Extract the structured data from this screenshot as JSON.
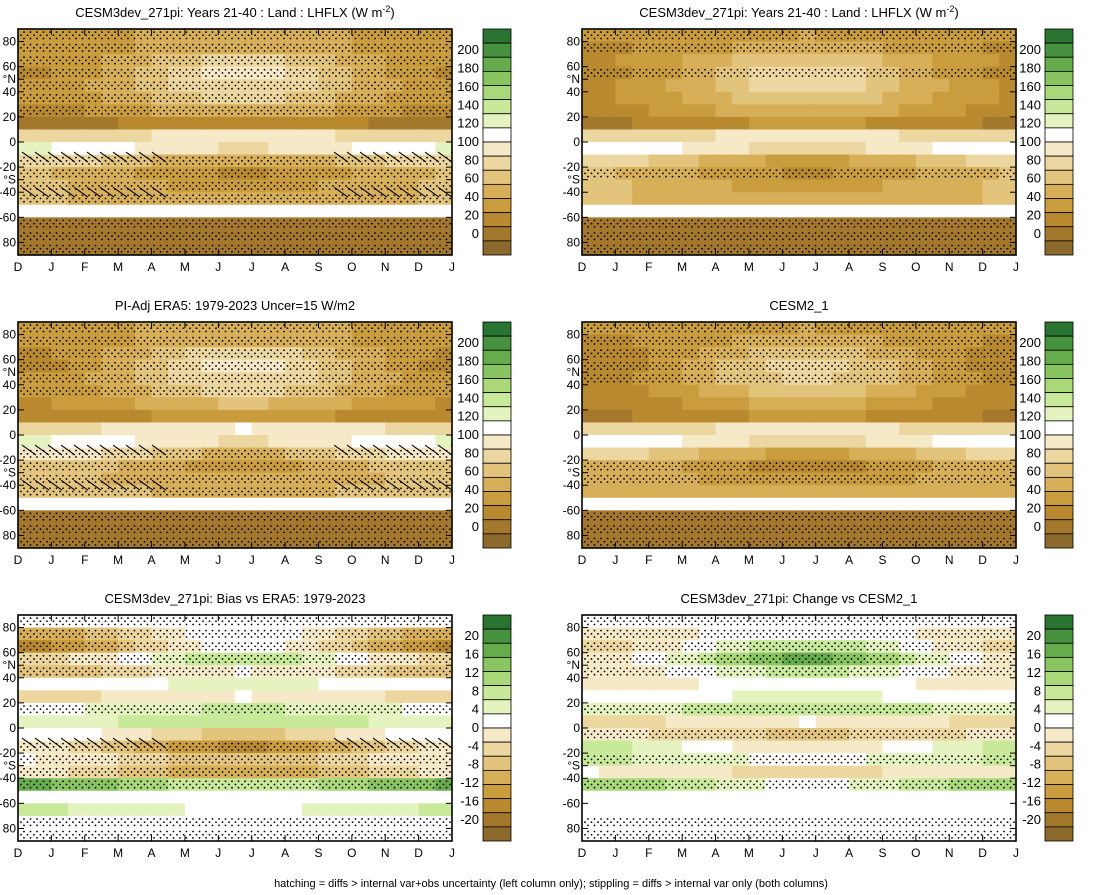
{
  "figure": {
    "footer": "hatching = diffs > internal var+obs uncertainty (left column only); stippling = diffs > internal var only (both columns)"
  },
  "colors": {
    "abs_scale": [
      "#8c6a2e",
      "#a4782c",
      "#b8892f",
      "#c99c3e",
      "#d6af58",
      "#e2c47c",
      "#ecd7a0",
      "#f5e9c8",
      "#ffffff",
      "#e4f3c0",
      "#c8e89a",
      "#a8d878",
      "#88c460",
      "#66ac4c",
      "#46923e",
      "#2a7432"
    ],
    "diff_scale": [
      "#8c6a2e",
      "#a4782c",
      "#b8892f",
      "#c99c3e",
      "#d6af58",
      "#e2c47c",
      "#ecd7a0",
      "#f5e9c8",
      "#ffffff",
      "#e4f3c0",
      "#c8e89a",
      "#a8d878",
      "#88c460",
      "#66ac4c",
      "#46923e",
      "#2a7432"
    ]
  },
  "chart_data": [
    {
      "type": "heatmap",
      "title": "CESM3dev_271pi: Years 21-40 : Land : LHFLX (W m",
      "title_sup": "-2",
      "title_end": ")",
      "x_ticks": [
        "D",
        "J",
        "F",
        "M",
        "A",
        "M",
        "J",
        "J",
        "A",
        "S",
        "O",
        "N",
        "D",
        "J"
      ],
      "y_ticks": [
        "80",
        "60",
        "°N",
        "40",
        "20",
        "0",
        "-20",
        "°S",
        "-40",
        "-60",
        "80"
      ],
      "ylim": [
        -90,
        90
      ],
      "colorbar_labels": [
        "200",
        "180",
        "160",
        "140",
        "120",
        "100",
        "80",
        "60",
        "40",
        "20",
        "0"
      ],
      "colorbar_range": [
        -10,
        210
      ],
      "latitudes": [
        85,
        75,
        65,
        55,
        45,
        35,
        25,
        15,
        5,
        -5,
        -15,
        -25,
        -35,
        -45,
        -55,
        -65,
        -75,
        -85
      ],
      "seasonal_profile": [
        45,
        45,
        55,
        60,
        60,
        55,
        40,
        20,
        85,
        100,
        65,
        45,
        50,
        55,
        100,
        10,
        10,
        10
      ],
      "seasonal_amp": [
        5,
        10,
        20,
        30,
        25,
        20,
        15,
        10,
        10,
        15,
        20,
        15,
        10,
        5,
        0,
        0,
        0,
        0
      ],
      "stipple_rows": [
        85,
        75,
        65,
        55,
        45,
        35,
        25,
        -15,
        -25,
        -35,
        -45,
        -65,
        -75,
        -85
      ],
      "hatch_rows": [
        -12,
        -40
      ],
      "region_note": "Land"
    },
    {
      "type": "heatmap",
      "title": "CESM3dev_271pi: Years 21-40 : Land : LHFLX (W m",
      "title_sup": "-2",
      "title_end": ")",
      "x_ticks": [
        "D",
        "J",
        "F",
        "M",
        "A",
        "M",
        "J",
        "J",
        "A",
        "S",
        "O",
        "N",
        "D",
        "J"
      ],
      "y_ticks": [
        "80",
        "60",
        "°N",
        "40",
        "20",
        "0",
        "-20",
        "°S",
        "-40",
        "-60",
        "80"
      ],
      "ylim": [
        -90,
        90
      ],
      "colorbar_labels": [
        "200",
        "180",
        "160",
        "140",
        "120",
        "100",
        "80",
        "60",
        "40",
        "20",
        "0"
      ],
      "colorbar_range": [
        -10,
        210
      ],
      "latitudes": [
        85,
        75,
        65,
        55,
        45,
        35,
        25,
        15,
        5,
        -5,
        -15,
        -25,
        -35,
        -45,
        -55,
        -65,
        -75,
        -85
      ],
      "seasonal_profile": [
        40,
        40,
        50,
        55,
        55,
        50,
        40,
        25,
        85,
        95,
        60,
        45,
        50,
        55,
        100,
        10,
        10,
        10
      ],
      "seasonal_amp": [
        5,
        10,
        20,
        30,
        25,
        20,
        15,
        10,
        10,
        15,
        20,
        15,
        10,
        5,
        0,
        0,
        0,
        0
      ],
      "stipple_rows": [
        85,
        75,
        55,
        -25,
        -65,
        -75,
        -85
      ],
      "hatch_rows": []
    },
    {
      "type": "heatmap",
      "title": "PI-Adj ERA5: 1979-2023 Uncer=15 W/m2",
      "x_ticks": [
        "D",
        "J",
        "F",
        "M",
        "A",
        "M",
        "J",
        "J",
        "A",
        "S",
        "O",
        "N",
        "D",
        "J"
      ],
      "y_ticks": [
        "80",
        "60",
        "°N",
        "40",
        "20",
        "0",
        "-20",
        "°S",
        "-40",
        "-60",
        "80"
      ],
      "ylim": [
        -90,
        90
      ],
      "colorbar_labels": [
        "200",
        "180",
        "160",
        "140",
        "120",
        "100",
        "80",
        "60",
        "40",
        "20",
        "0"
      ],
      "colorbar_range": [
        -10,
        210
      ],
      "latitudes": [
        85,
        75,
        65,
        55,
        45,
        35,
        25,
        15,
        5,
        -5,
        -15,
        -25,
        -35,
        -45,
        -55,
        -65,
        -75,
        -85
      ],
      "seasonal_profile": [
        45,
        45,
        55,
        60,
        60,
        55,
        45,
        30,
        90,
        100,
        75,
        55,
        55,
        60,
        100,
        10,
        10,
        10
      ],
      "seasonal_amp": [
        5,
        10,
        25,
        35,
        25,
        20,
        15,
        10,
        10,
        15,
        20,
        15,
        10,
        5,
        0,
        0,
        0,
        0
      ],
      "stipple_rows": [
        85,
        75,
        65,
        55,
        45,
        35,
        -15,
        -25,
        -35,
        -45,
        -65,
        -75,
        -85
      ],
      "hatch_rows": [
        -12,
        -40
      ]
    },
    {
      "type": "heatmap",
      "title": "CESM2_1",
      "x_ticks": [
        "D",
        "J",
        "F",
        "M",
        "A",
        "M",
        "J",
        "J",
        "A",
        "S",
        "O",
        "N",
        "D",
        "J"
      ],
      "y_ticks": [
        "80",
        "60",
        "°N",
        "40",
        "20",
        "0",
        "-20",
        "°S",
        "-40",
        "-60",
        "80"
      ],
      "ylim": [
        -90,
        90
      ],
      "colorbar_labels": [
        "200",
        "180",
        "160",
        "140",
        "120",
        "100",
        "80",
        "60",
        "40",
        "20",
        "0"
      ],
      "colorbar_range": [
        -10,
        210
      ],
      "latitudes": [
        85,
        75,
        65,
        55,
        45,
        35,
        25,
        15,
        5,
        -5,
        -15,
        -25,
        -35,
        -45,
        -55,
        -65,
        -75,
        -85
      ],
      "seasonal_profile": [
        40,
        40,
        45,
        50,
        50,
        45,
        35,
        25,
        85,
        95,
        60,
        40,
        45,
        50,
        100,
        10,
        10,
        10
      ],
      "seasonal_amp": [
        5,
        10,
        20,
        30,
        25,
        20,
        15,
        10,
        10,
        15,
        20,
        15,
        10,
        5,
        0,
        0,
        0,
        0
      ],
      "stipple_rows": [
        85,
        75,
        65,
        55,
        45,
        -25,
        -35,
        -65,
        -75,
        -85
      ],
      "hatch_rows": []
    },
    {
      "type": "heatmap",
      "title": "CESM3dev_271pi: Bias vs ERA5: 1979-2023",
      "x_ticks": [
        "D",
        "J",
        "F",
        "M",
        "A",
        "M",
        "J",
        "J",
        "A",
        "S",
        "O",
        "N",
        "D",
        "J"
      ],
      "y_ticks": [
        "80",
        "60",
        "°N",
        "40",
        "20",
        "0",
        "-20",
        "°S",
        "-40",
        "-60",
        "80"
      ],
      "ylim": [
        -90,
        90
      ],
      "colorbar_labels": [
        "20",
        "16",
        "12",
        "8",
        "4",
        "0",
        "-4",
        "-8",
        "-12",
        "-16",
        "-20"
      ],
      "colorbar_range": [
        -22,
        22
      ],
      "latitudes": [
        85,
        75,
        65,
        55,
        45,
        35,
        25,
        15,
        5,
        -5,
        -15,
        -25,
        -35,
        -45,
        -55,
        -65,
        -75,
        -85
      ],
      "seasonal_profile": [
        0,
        -4,
        -6,
        2,
        -4,
        2,
        -2,
        4,
        6,
        -2,
        -8,
        -4,
        -6,
        10,
        0,
        4,
        0,
        0
      ],
      "seasonal_amp": [
        0,
        6,
        8,
        6,
        4,
        2,
        2,
        2,
        2,
        4,
        6,
        4,
        4,
        4,
        0,
        2,
        0,
        0
      ],
      "stipple_rows": [
        85,
        75,
        65,
        55,
        45,
        15,
        -15,
        -25,
        -35,
        -45,
        -75,
        -85
      ],
      "hatch_rows": [
        -12
      ]
    },
    {
      "type": "heatmap",
      "title": "CESM3dev_271pi: Change vs CESM2_1",
      "x_ticks": [
        "D",
        "J",
        "F",
        "M",
        "A",
        "M",
        "J",
        "J",
        "A",
        "S",
        "O",
        "N",
        "D",
        "J"
      ],
      "y_ticks": [
        "80",
        "60",
        "°N",
        "40",
        "20",
        "0",
        "-20",
        "°S",
        "-40",
        "-60",
        "80"
      ],
      "ylim": [
        -90,
        90
      ],
      "colorbar_labels": [
        "20",
        "16",
        "12",
        "8",
        "4",
        "0",
        "-4",
        "-8",
        "-12",
        "-16",
        "-20"
      ],
      "colorbar_range": [
        -22,
        22
      ],
      "latitudes": [
        85,
        75,
        65,
        55,
        45,
        35,
        25,
        15,
        5,
        -5,
        -15,
        -25,
        -35,
        -45,
        -55,
        -65,
        -75,
        -85
      ],
      "seasonal_profile": [
        0,
        0,
        2,
        6,
        2,
        0,
        2,
        6,
        -2,
        -4,
        2,
        4,
        -2,
        6,
        0,
        0,
        0,
        0
      ],
      "seasonal_amp": [
        0,
        2,
        6,
        8,
        4,
        2,
        2,
        2,
        2,
        2,
        4,
        2,
        2,
        4,
        0,
        0,
        0,
        0
      ],
      "stipple_rows": [
        85,
        75,
        65,
        55,
        45,
        15,
        -5,
        -25,
        -45,
        -75,
        -85
      ],
      "hatch_rows": []
    }
  ]
}
